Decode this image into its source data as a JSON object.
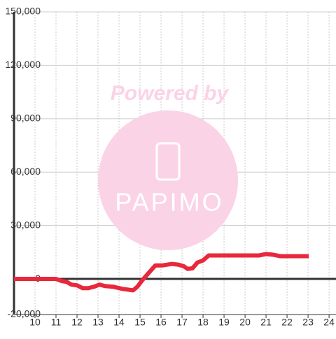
{
  "chart_data": {
    "type": "line",
    "watermark": {
      "text": "Powered by",
      "logo": "PAPIMO"
    },
    "x": [
      9,
      11,
      11.27,
      11.5,
      11.73,
      12,
      12.27,
      12.53,
      12.8,
      13.07,
      13.33,
      13.73,
      14.17,
      14.67,
      14.87,
      15.13,
      15.4,
      15.73,
      16.07,
      16.5,
      16.83,
      17.07,
      17.27,
      17.5,
      17.73,
      18,
      18.27,
      20.67,
      21,
      21.33,
      21.67,
      23.03
    ],
    "series": [
      {
        "color": "#e8283c",
        "values": [
          0,
          0,
          -1200,
          -1600,
          -3200,
          -3600,
          -5200,
          -5200,
          -4400,
          -3200,
          -4000,
          -4400,
          -5600,
          -6400,
          -4400,
          -400,
          3200,
          7600,
          7600,
          8400,
          8000,
          7200,
          5600,
          6000,
          9200,
          10400,
          13200,
          13200,
          14000,
          13600,
          12800,
          12800
        ]
      }
    ],
    "xlim": [
      9,
      24.33
    ],
    "xticks": [
      10,
      11,
      12,
      13,
      14,
      15,
      16,
      17,
      18,
      19,
      20,
      21,
      22,
      23,
      24
    ],
    "ylim": [
      -20000,
      150000
    ],
    "yticks": [
      {
        "value": -20000,
        "label": "-20,000"
      },
      0,
      {
        "value": 30000,
        "label": "30,000"
      },
      {
        "value": 60000,
        "label": "60,000"
      },
      {
        "value": 90000,
        "label": "90,000"
      },
      {
        "value": 120000,
        "label": "120,000"
      },
      {
        "value": 150000,
        "label": "150,000"
      }
    ],
    "grid": true
  }
}
